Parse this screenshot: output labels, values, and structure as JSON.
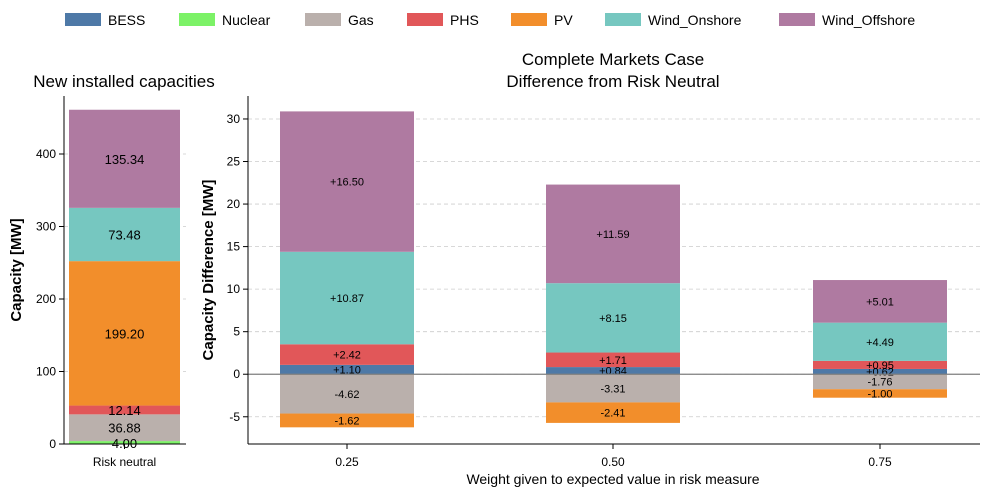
{
  "legend": [
    {
      "name": "BESS",
      "color": "#4e79a7"
    },
    {
      "name": "Nuclear",
      "color": "#7cf267"
    },
    {
      "name": "Gas",
      "color": "#bab0ac"
    },
    {
      "name": "PHS",
      "color": "#e15759"
    },
    {
      "name": "PV",
      "color": "#f28e2b"
    },
    {
      "name": "Wind_Onshore",
      "color": "#76c7c0"
    },
    {
      "name": "Wind_Offshore",
      "color": "#af7aa1"
    }
  ],
  "chart_data": [
    {
      "type": "bar",
      "stacked": true,
      "title": "New installed capacities",
      "xlabel": "",
      "ylabel": "Capacity [MW]",
      "categories": [
        "Risk neutral"
      ],
      "ylim": [
        0,
        480
      ],
      "yticks": [
        0,
        100,
        200,
        300,
        400
      ],
      "grid": true,
      "series": [
        {
          "name": "Nuclear",
          "values": [
            4.0
          ],
          "labels": [
            "4.00"
          ]
        },
        {
          "name": "Gas",
          "values": [
            36.88
          ],
          "labels": [
            "36.88"
          ]
        },
        {
          "name": "PHS",
          "values": [
            12.14
          ],
          "labels": [
            "12.14"
          ]
        },
        {
          "name": "PV",
          "values": [
            199.2
          ],
          "labels": [
            "199.20"
          ]
        },
        {
          "name": "Wind_Onshore",
          "values": [
            73.48
          ],
          "labels": [
            "73.48"
          ]
        },
        {
          "name": "Wind_Offshore",
          "values": [
            135.34
          ],
          "labels": [
            "135.34"
          ]
        }
      ]
    },
    {
      "type": "bar",
      "stacked": true,
      "title": "Complete Markets Case",
      "subtitle": "Difference from Risk Neutral",
      "xlabel": "Weight given to expected value in risk measure",
      "ylabel": "Capacity Difference [MW]",
      "categories": [
        "0.25",
        "0.50",
        "0.75"
      ],
      "ylim": [
        -8.2,
        32.7
      ],
      "yticks": [
        -5,
        0,
        5,
        10,
        15,
        20,
        25,
        30
      ],
      "grid": true,
      "positive_series": [
        {
          "name": "BESS",
          "values": [
            1.1,
            0.84,
            0.62
          ],
          "labels": [
            "+1.10",
            "+0.84",
            "+0.62"
          ]
        },
        {
          "name": "PHS",
          "values": [
            2.42,
            1.71,
            0.95
          ],
          "labels": [
            "+2.42",
            "+1.71",
            "+0.95"
          ]
        },
        {
          "name": "Wind_Onshore",
          "values": [
            10.87,
            8.15,
            4.49
          ],
          "labels": [
            "+10.87",
            "+8.15",
            "+4.49"
          ]
        },
        {
          "name": "Wind_Offshore",
          "values": [
            16.5,
            11.59,
            5.01
          ],
          "labels": [
            "+16.50",
            "+11.59",
            "+5.01"
          ]
        }
      ],
      "negative_series": [
        {
          "name": "Gas",
          "values": [
            -4.62,
            -3.31,
            -1.76
          ],
          "labels": [
            "-4.62",
            "-3.31",
            "-1.76"
          ]
        },
        {
          "name": "PV",
          "values": [
            -1.62,
            -2.41,
            -1.0
          ],
          "labels": [
            "-1.62",
            "-2.41",
            "-1.00"
          ]
        }
      ]
    }
  ]
}
